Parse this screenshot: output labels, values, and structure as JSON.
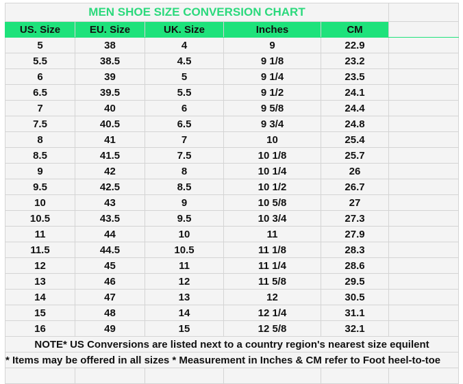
{
  "title": "MEN SHOE SIZE CONVERSION CHART",
  "colors": {
    "header_bg": "#1ee27b",
    "title_text": "#2bd97c"
  },
  "headers": [
    "US. Size",
    "EU. Size",
    "UK. Size",
    "Inches",
    "CM"
  ],
  "rows": [
    [
      "5",
      "38",
      "4",
      "9",
      "22.9"
    ],
    [
      "5.5",
      "38.5",
      "4.5",
      "9 1/8",
      "23.2"
    ],
    [
      "6",
      "39",
      "5",
      "9 1/4",
      "23.5"
    ],
    [
      "6.5",
      "39.5",
      "5.5",
      "9 1/2",
      "24.1"
    ],
    [
      "7",
      "40",
      "6",
      "9 5/8",
      "24.4"
    ],
    [
      "7.5",
      "40.5",
      "6.5",
      "9 3/4",
      "24.8"
    ],
    [
      "8",
      "41",
      "7",
      "10",
      "25.4"
    ],
    [
      "8.5",
      "41.5",
      "7.5",
      "10 1/8",
      "25.7"
    ],
    [
      "9",
      "42",
      "8",
      "10 1/4",
      "26"
    ],
    [
      "9.5",
      "42.5",
      "8.5",
      "10 1/2",
      "26.7"
    ],
    [
      "10",
      "43",
      "9",
      "10 5/8",
      "27"
    ],
    [
      "10.5",
      "43.5",
      "9.5",
      "10 3/4",
      "27.3"
    ],
    [
      "11",
      "44",
      "10",
      "11",
      "27.9"
    ],
    [
      "11.5",
      "44.5",
      "10.5",
      "11 1/8",
      "28.3"
    ],
    [
      "12",
      "45",
      "11",
      "11 1/4",
      "28.6"
    ],
    [
      "13",
      "46",
      "12",
      "11 5/8",
      "29.5"
    ],
    [
      "14",
      "47",
      "13",
      "12",
      "30.5"
    ],
    [
      "15",
      "48",
      "14",
      "12 1/4",
      "31.1"
    ],
    [
      "16",
      "49",
      "15",
      "12 5/8",
      "32.1"
    ]
  ],
  "note1": "NOTE* US Conversions are listed next to a country region's nearest size equilent",
  "note2": "* Items may be offered in all sizes * Measurement in Inches & CM refer to Foot heel-to-toe"
}
